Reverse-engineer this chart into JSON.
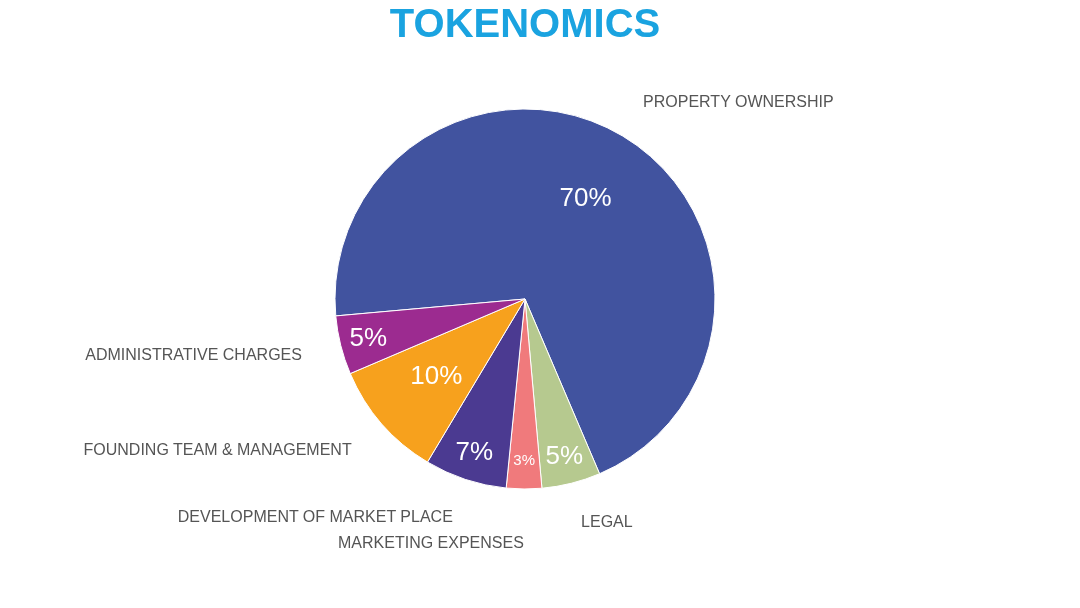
{
  "chart_data": {
    "type": "pie",
    "title": "TOKENOMICS",
    "categories": [
      "PROPERTY OWNERSHIP",
      "LEGAL",
      "MARKETING EXPENSES",
      "DEVELOPMENT OF MARKET PLACE",
      "FOUNDING TEAM & MANAGEMENT",
      "ADMINISTRATIVE CHARGES"
    ],
    "values": [
      70,
      5,
      3,
      7,
      10,
      5
    ],
    "value_labels": [
      "70%",
      "5%",
      "3%",
      "7%",
      "10%",
      "5%"
    ],
    "colors": [
      "#41539f",
      "#b6c98f",
      "#f07a7c",
      "#4b3a91",
      "#f7a11d",
      "#9c2b90"
    ],
    "legend": false
  }
}
